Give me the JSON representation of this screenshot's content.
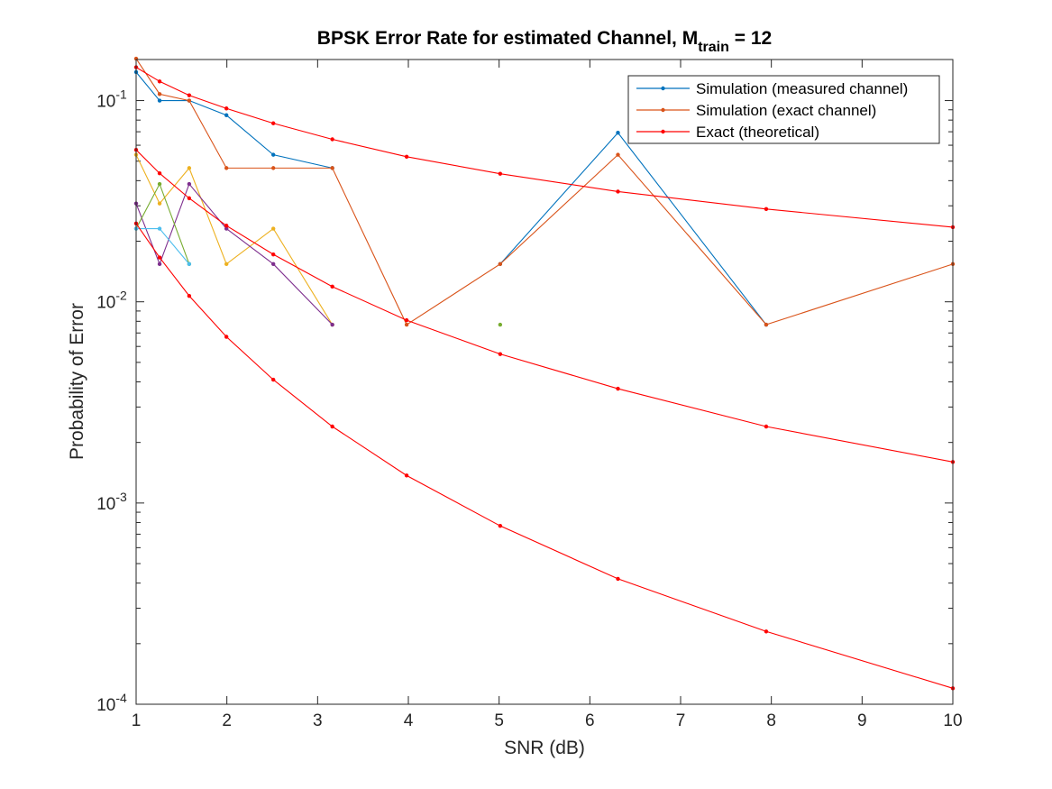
{
  "chart_data": {
    "type": "line",
    "title_main": "BPSK Error Rate for estimated Channel, M",
    "title_sub": "train",
    "title_tail": " = 12",
    "xlabel": "SNR (dB)",
    "ylabel": "Probability of Error",
    "xscale": "linear",
    "yscale": "log",
    "xlim": [
      1,
      10
    ],
    "ylim": [
      0.0001,
      0.16
    ],
    "xticks": [
      "1",
      "2",
      "3",
      "4",
      "5",
      "6",
      "7",
      "8",
      "9",
      "10"
    ],
    "yticks": [
      {
        "base": "10",
        "exp": "-4"
      },
      {
        "base": "10",
        "exp": "-3"
      },
      {
        "base": "10",
        "exp": "-2"
      },
      {
        "base": "10",
        "exp": "-1"
      }
    ],
    "legend_position": "top-right",
    "colors": {
      "measured": "#0072BD",
      "exact_channel": "#D95319",
      "theoretical": "#FF0000",
      "yellow": "#EDB120",
      "purple": "#7E2F8E",
      "green": "#77AC30",
      "cyan": "#4DBEEE"
    },
    "legend": [
      {
        "label": "Simulation (measured channel)",
        "color": "#0072BD"
      },
      {
        "label": "Simulation (exact channel)",
        "color": "#D95319"
      },
      {
        "label": "Exact (theoretical)",
        "color": "#FF0000"
      }
    ],
    "series": [
      {
        "key": "measured_1",
        "color": "#0072BD",
        "x": [
          1,
          1.2589,
          1.5849,
          1.9953,
          2.5119,
          3.1623,
          3.9811,
          5.0119,
          6.3096,
          7.9433,
          10
        ],
        "y": [
          0.1385,
          0.1,
          0.1,
          0.0846,
          0.0538,
          0.0462,
          null,
          0.0154,
          0.0692,
          0.0077,
          null
        ]
      },
      {
        "key": "exact_channel_1",
        "color": "#D95319",
        "x": [
          1,
          1.2589,
          1.5849,
          1.9953,
          2.5119,
          3.1623,
          3.9811,
          5.0119,
          6.3096,
          7.9433,
          10
        ],
        "y": [
          0.1615,
          0.1077,
          0.1,
          0.0462,
          0.0462,
          0.0462,
          0.0077,
          0.0154,
          0.0538,
          0.0077,
          0.0154
        ]
      },
      {
        "key": "theory_1",
        "color": "#FF0000",
        "x": [
          1,
          1.2589,
          1.5849,
          1.9953,
          2.5119,
          3.1623,
          3.9811,
          5.0119,
          6.3096,
          7.9433,
          10
        ],
        "y": [
          0.1464,
          0.1245,
          0.1062,
          0.0914,
          0.0771,
          0.0642,
          0.0526,
          0.0433,
          0.0353,
          0.0289,
          0.0235
        ]
      },
      {
        "key": "yellow",
        "color": "#EDB120",
        "x": [
          1,
          1.2589,
          1.5849,
          1.9953,
          2.5119,
          3.1623
        ],
        "y": [
          0.0538,
          0.0308,
          0.0462,
          0.0154,
          0.0231,
          0.0077
        ]
      },
      {
        "key": "purple",
        "color": "#7E2F8E",
        "x": [
          1,
          1.2589,
          1.5849,
          1.9953,
          2.5119,
          3.1623
        ],
        "y": [
          0.0308,
          0.0154,
          0.0385,
          0.0231,
          0.0154,
          0.0077
        ]
      },
      {
        "key": "green",
        "color": "#77AC30",
        "x": [
          1,
          1.2589,
          1.5849,
          1.9953,
          2.5119,
          3.1623,
          3.9811,
          5.0119
        ],
        "y": [
          0.0231,
          0.0385,
          0.0154,
          null,
          null,
          null,
          null,
          0.0077
        ]
      },
      {
        "key": "cyan",
        "color": "#4DBEEE",
        "x": [
          1,
          1.2589,
          1.5849
        ],
        "y": [
          0.0231,
          0.0231,
          0.0154
        ]
      },
      {
        "key": "theory_2",
        "color": "#FF0000",
        "x": [
          1,
          1.2589,
          1.5849,
          1.9953,
          2.5119,
          3.1623,
          3.9811,
          5.0119,
          6.3096,
          7.9433,
          10
        ],
        "y": [
          0.0569,
          0.0435,
          0.0327,
          0.0239,
          0.0172,
          0.0119,
          0.0081,
          0.0055,
          0.0037,
          0.0024,
          0.0016
        ]
      },
      {
        "key": "theory_3",
        "color": "#FF0000",
        "x": [
          1,
          1.2589,
          1.5849,
          1.9953,
          2.5119,
          3.1623,
          3.9811,
          5.0119,
          6.3096,
          7.9433,
          10
        ],
        "y": [
          0.0245,
          0.0166,
          0.0107,
          0.0067,
          0.0041,
          0.0024,
          0.00137,
          0.00077,
          0.00042,
          0.00023,
          0.00012
        ]
      }
    ]
  }
}
